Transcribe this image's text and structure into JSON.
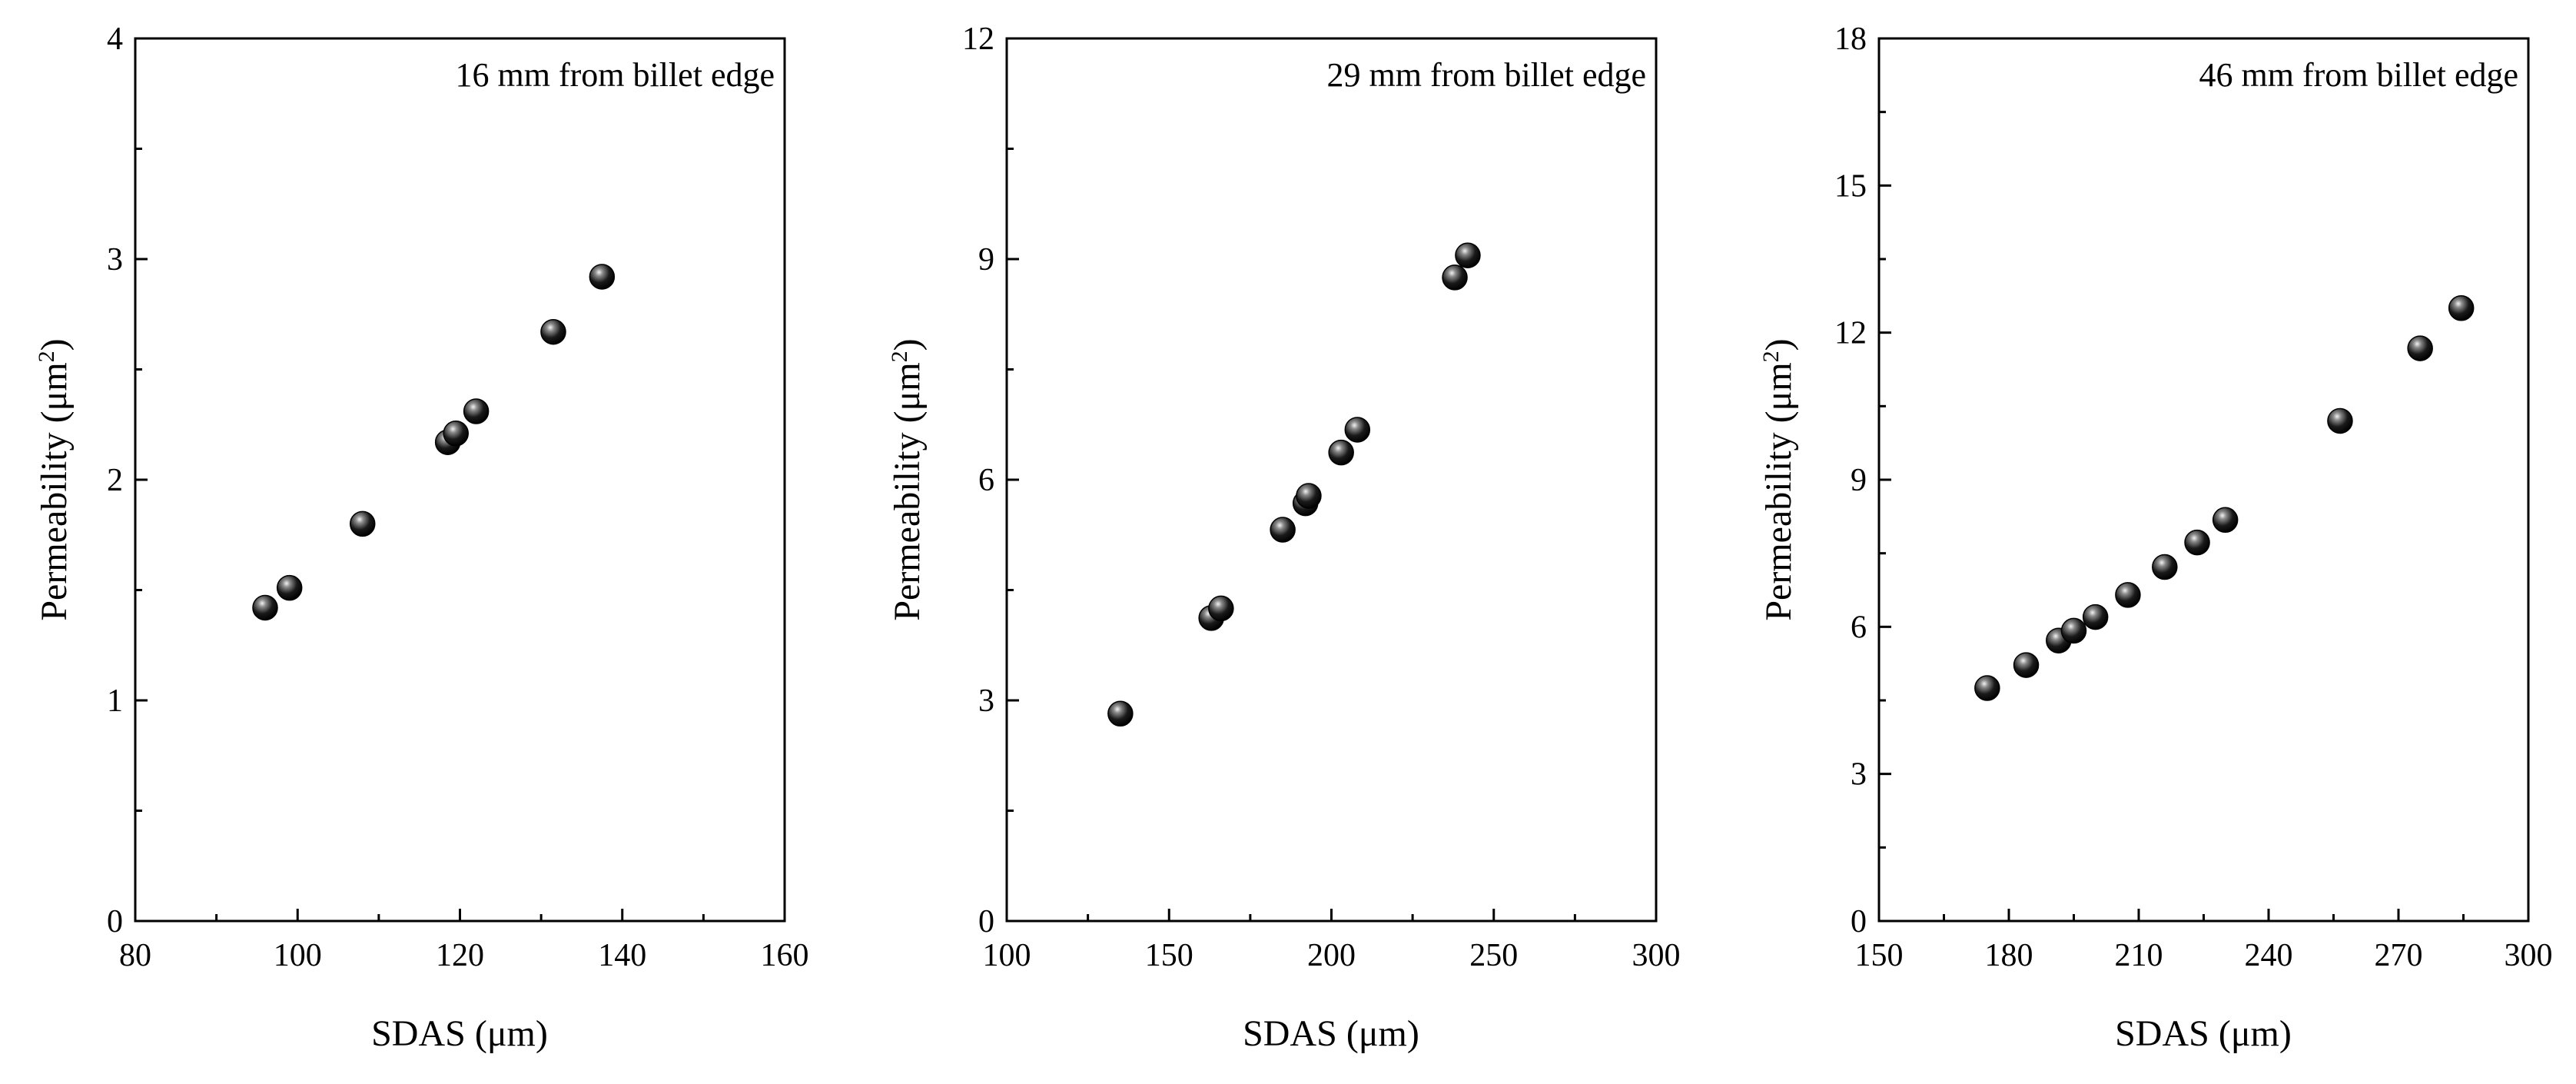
{
  "colors": {
    "marker": "#000000",
    "marker_highlight": "#f2f2f2",
    "axis": "#000000",
    "background": "#ffffff"
  },
  "marker_icon": "sphere",
  "chart_data": [
    {
      "type": "scatter",
      "title": "",
      "annotation": "16 mm from billet edge",
      "xlabel": "SDAS (μm)",
      "ylabel": "Permeability (μm",
      "ylabel_superscript": "2",
      "ylabel_close": ")",
      "xlim": [
        80,
        160
      ],
      "ylim": [
        0,
        4
      ],
      "xticks": [
        80,
        100,
        120,
        140,
        160
      ],
      "yticks": [
        0,
        1,
        2,
        3,
        4
      ],
      "xtick_labels": [
        "80",
        "100",
        "120",
        "140",
        "160"
      ],
      "ytick_labels": [
        "0",
        "1",
        "2",
        "3",
        "4"
      ],
      "minor_xticks": [
        90,
        110,
        130,
        150
      ],
      "minor_yticks": [
        0.5,
        1.5,
        2.5,
        3.5
      ],
      "x": [
        96,
        99,
        108,
        118.5,
        119.5,
        122,
        131.5,
        137.5
      ],
      "y": [
        1.42,
        1.51,
        1.8,
        2.17,
        2.21,
        2.31,
        2.67,
        2.92
      ]
    },
    {
      "type": "scatter",
      "title": "",
      "annotation": "29 mm from billet edge",
      "xlabel": "SDAS (μm)",
      "ylabel": "Permeability (μm",
      "ylabel_superscript": "2",
      "ylabel_close": ")",
      "xlim": [
        100,
        300
      ],
      "ylim": [
        0,
        12
      ],
      "xticks": [
        100,
        150,
        200,
        250,
        300
      ],
      "yticks": [
        0,
        3,
        6,
        9,
        12
      ],
      "xtick_labels": [
        "100",
        "150",
        "200",
        "250",
        "300"
      ],
      "ytick_labels": [
        "0",
        "3",
        "6",
        "9",
        "12"
      ],
      "minor_xticks": [
        125,
        175,
        225,
        275
      ],
      "minor_yticks": [
        1.5,
        4.5,
        7.5,
        10.5
      ],
      "x": [
        135,
        163,
        166,
        185,
        192,
        193,
        203,
        208,
        238,
        242
      ],
      "y": [
        2.82,
        4.12,
        4.25,
        5.32,
        5.68,
        5.78,
        6.37,
        6.68,
        8.75,
        9.05
      ]
    },
    {
      "type": "scatter",
      "title": "",
      "annotation": "46 mm from billet edge",
      "xlabel": "SDAS (μm)",
      "ylabel": "Permeability (μm",
      "ylabel_superscript": "2",
      "ylabel_close": ")",
      "xlim": [
        150,
        300
      ],
      "ylim": [
        0,
        18
      ],
      "xticks": [
        150,
        180,
        210,
        240,
        270,
        300
      ],
      "yticks": [
        0,
        3,
        6,
        9,
        12,
        15,
        18
      ],
      "xtick_labels": [
        "150",
        "180",
        "210",
        "240",
        "270",
        "300"
      ],
      "ytick_labels": [
        "0",
        "3",
        "6",
        "9",
        "12",
        "15",
        "18"
      ],
      "minor_xticks": [
        165,
        195,
        225,
        255,
        285
      ],
      "minor_yticks": [
        1.5,
        4.5,
        7.5,
        10.5,
        13.5,
        16.5
      ],
      "x": [
        175,
        184,
        191.5,
        195,
        200,
        207.5,
        216,
        223.5,
        230,
        256.5,
        275,
        284.5
      ],
      "y": [
        4.75,
        5.22,
        5.72,
        5.92,
        6.2,
        6.65,
        7.22,
        7.72,
        8.18,
        10.2,
        11.68,
        12.5
      ]
    }
  ]
}
